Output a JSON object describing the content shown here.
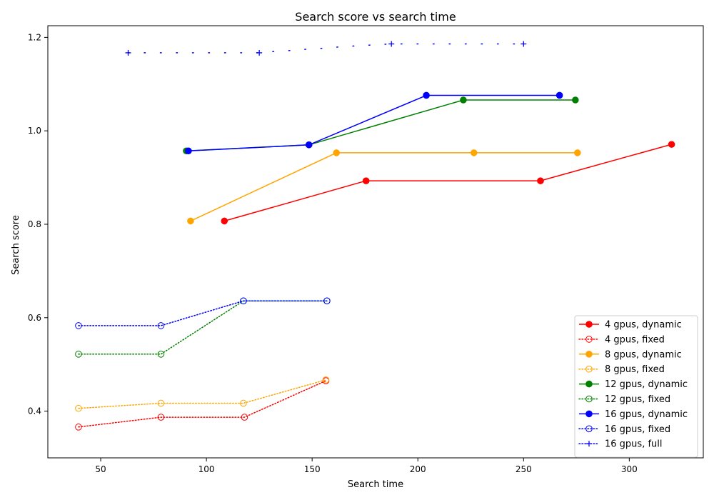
{
  "chart_data": {
    "type": "line",
    "title": "Search score vs search time",
    "xlabel": "Search time",
    "ylabel": "Search score",
    "xlim": [
      25,
      335
    ],
    "ylim": [
      0.3,
      1.225
    ],
    "xticks": [
      50,
      100,
      150,
      200,
      250,
      300
    ],
    "yticks": [
      0.4,
      0.6,
      0.8,
      1.0,
      1.2
    ],
    "xtick_labels": [
      "50",
      "100",
      "150",
      "200",
      "250",
      "300"
    ],
    "ytick_labels": [
      "0.4",
      "0.6",
      "0.8",
      "1.0",
      "1.2"
    ],
    "grid": false,
    "legend_position": "lower-right",
    "series": [
      {
        "name": "4 gpus, dynamic",
        "color": "#ff0000",
        "style": "solid",
        "marker": "filled-circle",
        "points": [
          [
            108.5,
            0.807
          ],
          [
            175.5,
            0.893
          ],
          [
            258,
            0.893
          ],
          [
            320,
            0.971
          ]
        ]
      },
      {
        "name": "4 gpus, fixed",
        "color": "#ff0000",
        "style": "dotted",
        "marker": "open-circle",
        "points": [
          [
            39.5,
            0.366
          ],
          [
            78.5,
            0.387
          ],
          [
            118,
            0.387
          ],
          [
            156.5,
            0.465
          ]
        ]
      },
      {
        "name": "8 gpus, dynamic",
        "color": "#ffa500",
        "style": "solid",
        "marker": "filled-circle",
        "points": [
          [
            92.5,
            0.807
          ],
          [
            161.5,
            0.953
          ],
          [
            226.5,
            0.953
          ],
          [
            275.5,
            0.953
          ]
        ]
      },
      {
        "name": "8 gpus, fixed",
        "color": "#ffa500",
        "style": "dotted",
        "marker": "open-circle",
        "points": [
          [
            39.5,
            0.406
          ],
          [
            78.5,
            0.417
          ],
          [
            117.5,
            0.417
          ],
          [
            156.5,
            0.467
          ]
        ]
      },
      {
        "name": "12 gpus, dynamic",
        "color": "#008000",
        "style": "solid",
        "marker": "filled-circle",
        "points": [
          [
            90.5,
            0.957
          ],
          [
            148.5,
            0.97
          ],
          [
            221.5,
            1.066
          ],
          [
            274.5,
            1.066
          ]
        ]
      },
      {
        "name": "12 gpus, fixed",
        "color": "#008000",
        "style": "dotted",
        "marker": "open-circle",
        "points": [
          [
            39.5,
            0.522
          ],
          [
            78.5,
            0.522
          ],
          [
            117.5,
            0.636
          ],
          [
            157,
            0.636
          ]
        ]
      },
      {
        "name": "16 gpus, dynamic",
        "color": "#0000ff",
        "style": "solid",
        "marker": "filled-circle",
        "points": [
          [
            91.5,
            0.957
          ],
          [
            148.5,
            0.97
          ],
          [
            204,
            1.076
          ],
          [
            267,
            1.076
          ]
        ]
      },
      {
        "name": "16 gpus, fixed",
        "color": "#0000ff",
        "style": "dotted",
        "marker": "open-circle",
        "points": [
          [
            39.5,
            0.583
          ],
          [
            78.5,
            0.583
          ],
          [
            117.5,
            0.636
          ],
          [
            157,
            0.636
          ]
        ]
      },
      {
        "name": "16 gpus, full",
        "color": "#0000ff",
        "style": "dotted",
        "marker": "plus",
        "points": [
          [
            63,
            1.167
          ],
          [
            125,
            1.167
          ],
          [
            187.5,
            1.186
          ],
          [
            250,
            1.186
          ]
        ],
        "dense_segments": [
          [
            63,
            1.167
          ],
          [
            71,
            1.167
          ],
          [
            79,
            1.167
          ],
          [
            87,
            1.167
          ],
          [
            94.5,
            1.167
          ],
          [
            102.5,
            1.167
          ],
          [
            110,
            1.167
          ],
          [
            117.5,
            1.167
          ],
          [
            125,
            1.167
          ],
          [
            132.5,
            1.17
          ],
          [
            140,
            1.172
          ],
          [
            148,
            1.175
          ],
          [
            156,
            1.177
          ],
          [
            164,
            1.18
          ],
          [
            171.5,
            1.182
          ],
          [
            179.5,
            1.184
          ],
          [
            187.5,
            1.186
          ],
          [
            195,
            1.186
          ],
          [
            203,
            1.186
          ],
          [
            211,
            1.186
          ],
          [
            218.5,
            1.186
          ],
          [
            226,
            1.186
          ],
          [
            234,
            1.186
          ],
          [
            242,
            1.186
          ],
          [
            250,
            1.186
          ]
        ]
      }
    ]
  }
}
